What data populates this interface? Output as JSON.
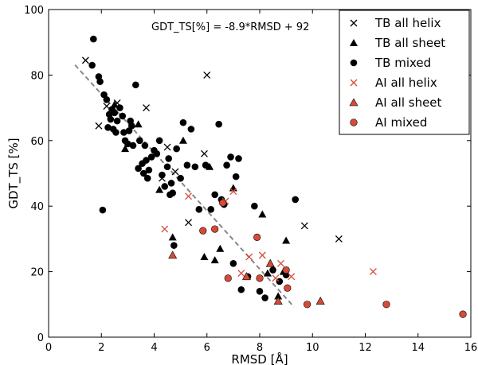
{
  "chart_data": {
    "type": "scatter",
    "title": "",
    "xlabel": "RMSD [Å]",
    "ylabel": "GDT_TS [%]",
    "xlim": [
      0,
      16
    ],
    "ylim": [
      0,
      100
    ],
    "xticks": [
      0,
      2,
      4,
      6,
      8,
      10,
      12,
      14,
      16
    ],
    "yticks": [
      0,
      20,
      40,
      60,
      80,
      100
    ],
    "grid": false,
    "legend_position": "top-right",
    "annotation": "GDT_TS[%] = -8.9*RMSD + 92",
    "fit_line": {
      "slope": -8.9,
      "intercept": 92,
      "x_range": [
        1.0,
        9.3
      ],
      "style": "dashed",
      "color": "#888888"
    },
    "series": [
      {
        "name": "TB all helix",
        "marker": "x",
        "color": "#000000",
        "x": [
          1.4,
          1.9,
          2.2,
          2.6,
          3.7,
          4.3,
          4.5,
          4.8,
          5.3,
          5.9,
          6.0,
          9.7,
          11.0
        ],
        "y": [
          84.5,
          64.5,
          70.5,
          71.5,
          70.0,
          48.5,
          58.0,
          50.5,
          35.0,
          56.0,
          80.0,
          34.0,
          30.0
        ]
      },
      {
        "name": "TB all sheet",
        "marker": "triangle",
        "color": "#000000",
        "x": [
          2.5,
          2.9,
          3.4,
          4.2,
          4.7,
          5.1,
          5.9,
          6.1,
          6.3,
          6.5,
          7.0,
          8.1,
          8.3,
          8.7,
          8.9,
          9.0
        ],
        "y": [
          71.0,
          57.5,
          65.0,
          45.0,
          30.5,
          60.0,
          24.5,
          52.0,
          23.5,
          27.0,
          45.5,
          37.5,
          19.5,
          12.5,
          20.0,
          29.5
        ]
      },
      {
        "name": "TB mixed",
        "marker": "circle",
        "color": "#000000",
        "x": [
          1.65,
          1.7,
          1.9,
          1.95,
          2.05,
          2.1,
          2.2,
          2.25,
          2.3,
          2.35,
          2.4,
          2.45,
          2.5,
          2.55,
          2.6,
          2.7,
          2.8,
          2.85,
          2.9,
          3.0,
          3.05,
          3.1,
          3.15,
          3.2,
          3.3,
          3.4,
          3.45,
          3.55,
          3.6,
          3.65,
          3.7,
          3.75,
          3.8,
          3.9,
          4.0,
          4.1,
          4.2,
          4.3,
          4.4,
          4.5,
          4.55,
          4.6,
          4.65,
          4.7,
          4.75,
          4.85,
          5.0,
          5.1,
          5.25,
          5.4,
          5.55,
          5.7,
          5.95,
          6.15,
          6.3,
          6.45,
          6.55,
          6.65,
          6.75,
          6.9,
          7.0,
          7.1,
          7.2,
          7.3,
          7.55,
          7.8,
          8.0,
          8.2,
          8.5,
          8.75,
          9.0,
          9.35
        ],
        "y": [
          83.0,
          91.0,
          79.5,
          78.0,
          38.8,
          74.0,
          72.5,
          64.0,
          68.0,
          66.5,
          69.5,
          63.5,
          68.5,
          62.5,
          66.0,
          70.0,
          67.5,
          62.5,
          60.0,
          59.0,
          63.0,
          66.0,
          64.5,
          58.5,
          77.0,
          51.5,
          60.0,
          53.0,
          50.0,
          58.5,
          54.0,
          48.5,
          51.0,
          55.0,
          57.0,
          56.0,
          60.0,
          49.5,
          46.0,
          52.0,
          54.5,
          43.5,
          47.0,
          44.0,
          28.0,
          57.5,
          48.5,
          65.5,
          52.5,
          63.5,
          52.0,
          39.0,
          52.5,
          39.0,
          43.5,
          65.0,
          42.0,
          40.5,
          52.5,
          55.0,
          22.5,
          49.0,
          54.5,
          14.5,
          18.5,
          40.0,
          14.0,
          12.0,
          20.5,
          17.0,
          19.0,
          42.0
        ]
      },
      {
        "name": "AI all helix",
        "marker": "x",
        "color": "#d84a38",
        "x": [
          4.4,
          5.3,
          6.7,
          7.0,
          7.3,
          7.6,
          8.1,
          8.6,
          8.8,
          9.2,
          12.3
        ],
        "y": [
          33.0,
          43.0,
          41.5,
          44.5,
          19.5,
          24.5,
          25.0,
          18.0,
          22.5,
          18.5,
          20.0
        ]
      },
      {
        "name": "AI all sheet",
        "marker": "triangle",
        "color": "#d84a38",
        "x": [
          4.7,
          7.5,
          8.4,
          8.7,
          10.3
        ],
        "y": [
          25.0,
          18.5,
          22.5,
          11.0,
          11.0
        ]
      },
      {
        "name": "AI mixed",
        "marker": "circle",
        "color": "#d84a38",
        "x": [
          5.85,
          6.3,
          6.6,
          6.8,
          7.9,
          8.0,
          9.0,
          9.05,
          9.8,
          12.8,
          15.7
        ],
        "y": [
          32.5,
          33.0,
          41.0,
          18.0,
          30.5,
          18.0,
          20.5,
          15.0,
          10.0,
          10.0,
          7.0
        ]
      }
    ]
  }
}
